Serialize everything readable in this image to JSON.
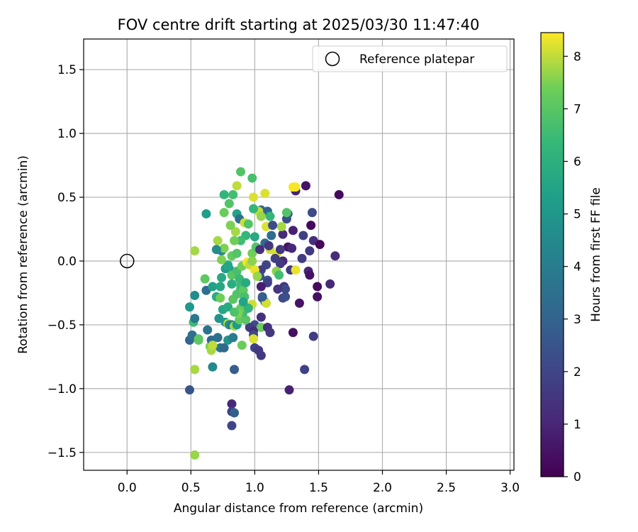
{
  "chart_data": {
    "type": "scatter",
    "title": "FOV centre drift starting at 2025/03/30 11:47:40",
    "xlabel": "Angular distance from reference (arcmin)",
    "ylabel": "Rotation from reference (arcmin)",
    "xlim": [
      -0.34,
      3.03
    ],
    "ylim": [
      -1.64,
      1.74
    ],
    "xticks": [
      "0.0",
      "0.5",
      "1.0",
      "1.5",
      "2.0",
      "2.5",
      "3.0"
    ],
    "xtick_values": [
      0,
      0.5,
      1.0,
      1.5,
      2.0,
      2.5,
      3.0
    ],
    "yticks": [
      "−1.5",
      "−1.0",
      "−0.5",
      "0.0",
      "0.5",
      "1.0",
      "1.5"
    ],
    "ytick_values": [
      -1.5,
      -1.0,
      -0.5,
      0.0,
      0.5,
      1.0,
      1.5
    ],
    "grid": true,
    "legend": {
      "label": "Reference platepar",
      "placement": "upper-right"
    },
    "reference_point": {
      "x": 0.0,
      "y": 0.0
    },
    "colorbar": {
      "label": "Hours from first FF file",
      "colormap": "viridis",
      "range": [
        0,
        8.45
      ],
      "ticks": [
        "0",
        "1",
        "2",
        "3",
        "4",
        "5",
        "6",
        "7",
        "8"
      ],
      "tick_values": [
        0,
        1,
        2,
        3,
        4,
        5,
        6,
        7,
        8
      ]
    },
    "points": [
      [
        1.66,
        0.52,
        0.2
      ],
      [
        1.4,
        0.59,
        0.5
      ],
      [
        1.32,
        0.55,
        0.9
      ],
      [
        1.3,
        0.58,
        8.4
      ],
      [
        1.45,
        0.38,
        2.2
      ],
      [
        1.44,
        0.28,
        0.2
      ],
      [
        1.38,
        0.2,
        1.8
      ],
      [
        1.46,
        0.16,
        1.3
      ],
      [
        1.51,
        0.13,
        0.2
      ],
      [
        1.3,
        0.24,
        0.9
      ],
      [
        1.26,
        0.11,
        0.5
      ],
      [
        1.29,
        0.1,
        1.1
      ],
      [
        1.22,
        0.0,
        1.0
      ],
      [
        1.25,
        0.33,
        2.3
      ],
      [
        1.26,
        0.37,
        2.5
      ],
      [
        1.63,
        0.04,
        1.2
      ],
      [
        1.43,
        0.08,
        1.6
      ],
      [
        1.37,
        0.02,
        1.7
      ],
      [
        1.42,
        -0.08,
        1.1
      ],
      [
        1.43,
        -0.11,
        0.5
      ],
      [
        1.49,
        -0.2,
        0.3
      ],
      [
        1.59,
        -0.18,
        1.1
      ],
      [
        1.49,
        -0.28,
        0.4
      ],
      [
        1.35,
        -0.33,
        0.5
      ],
      [
        1.28,
        -0.07,
        1.7
      ],
      [
        1.2,
        -0.02,
        1.6
      ],
      [
        1.23,
        -0.2,
        1.5
      ],
      [
        1.22,
        -0.29,
        2.1
      ],
      [
        1.24,
        -0.28,
        2.3
      ],
      [
        1.3,
        -0.56,
        0.4
      ],
      [
        1.46,
        -0.59,
        1.7
      ],
      [
        1.39,
        -0.85,
        1.9
      ],
      [
        1.27,
        -1.01,
        0.9
      ],
      [
        1.32,
        0.58,
        8.4
      ],
      [
        1.25,
        0.38,
        6.9
      ],
      [
        1.22,
        0.21,
        1.2
      ],
      [
        1.21,
        0.27,
        7.8
      ],
      [
        1.09,
        0.27,
        8.2
      ],
      [
        1.05,
        0.4,
        3.2
      ],
      [
        1.1,
        0.39,
        3.0
      ],
      [
        1.08,
        0.53,
        8.2
      ],
      [
        1.03,
        0.39,
        8.0
      ],
      [
        0.99,
        0.41,
        6.3
      ],
      [
        0.99,
        0.5,
        8.2
      ],
      [
        0.98,
        0.65,
        6.7
      ],
      [
        0.89,
        0.7,
        6.9
      ],
      [
        0.86,
        0.59,
        8.0
      ],
      [
        0.83,
        0.52,
        6.6
      ],
      [
        0.76,
        0.52,
        6.2
      ],
      [
        0.8,
        0.45,
        6.9
      ],
      [
        0.76,
        0.38,
        7.3
      ],
      [
        0.86,
        0.37,
        5.5
      ],
      [
        0.88,
        0.33,
        3.5
      ],
      [
        0.92,
        0.3,
        8.1
      ],
      [
        0.85,
        0.23,
        7.8
      ],
      [
        0.81,
        0.28,
        7.5
      ],
      [
        0.93,
        0.2,
        6.3
      ],
      [
        0.89,
        0.16,
        6.5
      ],
      [
        0.84,
        0.16,
        7.4
      ],
      [
        0.71,
        0.16,
        7.8
      ],
      [
        0.62,
        0.37,
        5.3
      ],
      [
        0.74,
        0.08,
        4.3
      ],
      [
        0.76,
        0.1,
        7.5
      ],
      [
        0.82,
        0.04,
        7.2
      ],
      [
        0.86,
        0.06,
        6.9
      ],
      [
        0.98,
        0.06,
        7.4
      ],
      [
        1.01,
        0.11,
        6.9
      ],
      [
        1.08,
        0.14,
        3.2
      ],
      [
        1.12,
        0.09,
        8.1
      ],
      [
        1.11,
        0.12,
        1.5
      ],
      [
        1.17,
        0.05,
        8.2
      ],
      [
        1.04,
        0.09,
        1.3
      ],
      [
        1.09,
        -0.03,
        2.0
      ],
      [
        1.05,
        -0.07,
        1.8
      ],
      [
        1.04,
        -0.12,
        2.4
      ],
      [
        1.1,
        -0.15,
        2.6
      ],
      [
        1.1,
        -0.17,
        1.9
      ],
      [
        1.05,
        -0.2,
        0.8
      ],
      [
        1.06,
        -0.29,
        1.7
      ],
      [
        1.08,
        -0.32,
        3.6
      ],
      [
        1.09,
        -0.33,
        8.1
      ],
      [
        1.05,
        -0.44,
        1.3
      ],
      [
        0.98,
        -0.34,
        8.1
      ],
      [
        1.0,
        -0.5,
        2.2
      ],
      [
        1.05,
        -0.52,
        7.3
      ],
      [
        1.1,
        -0.52,
        1.3
      ],
      [
        1.12,
        -0.56,
        1.5
      ],
      [
        0.96,
        -0.52,
        1.8
      ],
      [
        0.99,
        -0.55,
        1.2
      ],
      [
        0.99,
        -0.58,
        2.2
      ],
      [
        0.99,
        -0.61,
        8.2
      ],
      [
        1.0,
        -0.68,
        1.9
      ],
      [
        1.03,
        -0.7,
        1.6
      ],
      [
        1.05,
        -0.74,
        1.6
      ],
      [
        0.9,
        -0.66,
        7.3
      ],
      [
        0.84,
        -0.85,
        2.8
      ],
      [
        0.82,
        -1.12,
        1.1
      ],
      [
        0.82,
        -1.18,
        1.8
      ],
      [
        0.84,
        -1.19,
        2.9
      ],
      [
        0.82,
        -1.29,
        2.0
      ],
      [
        0.53,
        -1.52,
        7.7
      ],
      [
        0.49,
        -1.01,
        2.5
      ],
      [
        0.53,
        -0.85,
        7.8
      ],
      [
        0.49,
        -0.62,
        3.1
      ],
      [
        0.51,
        -0.58,
        3.5
      ],
      [
        0.56,
        -0.61,
        7.0
      ],
      [
        0.65,
        -0.67,
        7.5
      ],
      [
        0.66,
        -0.7,
        7.8
      ],
      [
        0.67,
        -0.83,
        4.5
      ],
      [
        0.73,
        -0.68,
        3.8
      ],
      [
        0.76,
        -0.68,
        3.2
      ],
      [
        0.66,
        -0.62,
        3.3
      ],
      [
        0.71,
        -0.6,
        3.5
      ],
      [
        0.79,
        -0.62,
        4.9
      ],
      [
        0.83,
        -0.6,
        4.0
      ],
      [
        0.63,
        -0.54,
        3.6
      ],
      [
        0.52,
        -0.48,
        6.5
      ],
      [
        0.53,
        -0.45,
        3.8
      ],
      [
        0.49,
        -0.36,
        5.1
      ],
      [
        0.53,
        -0.27,
        4.6
      ],
      [
        0.62,
        -0.23,
        3.4
      ],
      [
        0.61,
        -0.14,
        7.1
      ],
      [
        0.67,
        -0.2,
        5.4
      ],
      [
        0.7,
        -0.28,
        5.8
      ],
      [
        0.73,
        -0.29,
        7.4
      ],
      [
        0.75,
        -0.38,
        5.6
      ],
      [
        0.72,
        -0.45,
        4.9
      ],
      [
        0.77,
        -0.48,
        5.1
      ],
      [
        0.79,
        -0.49,
        7.9
      ],
      [
        0.8,
        -0.5,
        4.6
      ],
      [
        0.82,
        -0.5,
        4.2
      ],
      [
        0.84,
        -0.51,
        7.8
      ],
      [
        0.86,
        -0.5,
        5.2
      ],
      [
        0.88,
        -0.46,
        7.2
      ],
      [
        0.88,
        -0.4,
        6.8
      ],
      [
        0.83,
        -0.3,
        7.0
      ],
      [
        0.86,
        -0.26,
        6.9
      ],
      [
        0.89,
        -0.22,
        6.7
      ],
      [
        0.89,
        -0.19,
        6.5
      ],
      [
        0.91,
        -0.23,
        7.1
      ],
      [
        0.92,
        -0.28,
        6.7
      ],
      [
        0.93,
        -0.46,
        7.0
      ],
      [
        0.91,
        -0.4,
        6.6
      ],
      [
        0.89,
        -0.37,
        7.2
      ],
      [
        0.87,
        -0.41,
        7.5
      ],
      [
        0.79,
        -0.36,
        5.8
      ],
      [
        0.73,
        -0.2,
        5.6
      ],
      [
        0.74,
        -0.13,
        5.7
      ],
      [
        0.77,
        -0.06,
        5.3
      ],
      [
        0.79,
        -0.03,
        6.3
      ],
      [
        0.8,
        -0.06,
        4.9
      ],
      [
        0.82,
        -0.11,
        7.0
      ],
      [
        0.86,
        -0.08,
        6.7
      ],
      [
        0.88,
        -0.14,
        6.4
      ],
      [
        0.93,
        -0.17,
        5.8
      ],
      [
        0.9,
        -0.04,
        7.4
      ],
      [
        0.94,
        -0.01,
        8.4
      ],
      [
        0.96,
        -0.03,
        8.0
      ],
      [
        1.0,
        -0.07,
        8.3
      ],
      [
        1.02,
        -0.12,
        7.7
      ],
      [
        0.98,
        0.0,
        7.6
      ],
      [
        0.74,
        0.01,
        7.5
      ],
      [
        0.7,
        0.09,
        4.6
      ],
      [
        0.53,
        0.08,
        7.8
      ],
      [
        0.67,
        -0.66,
        8.0
      ],
      [
        0.56,
        -0.62,
        7.1
      ],
      [
        0.84,
        -0.4,
        6.8
      ],
      [
        0.95,
        -0.37,
        6.2
      ],
      [
        0.91,
        -0.32,
        5.5
      ],
      [
        1.0,
        0.19,
        5.7
      ],
      [
        1.13,
        0.2,
        3.4
      ],
      [
        1.17,
        -0.08,
        7.6
      ],
      [
        1.19,
        -0.11,
        6.6
      ],
      [
        1.24,
        -0.22,
        2.1
      ],
      [
        1.12,
        0.35,
        6.3
      ],
      [
        1.05,
        0.35,
        7.7
      ],
      [
        0.95,
        0.29,
        6.9
      ],
      [
        1.16,
        0.02,
        1.8
      ],
      [
        1.32,
        -0.07,
        8.3
      ],
      [
        1.18,
        -0.22,
        1.5
      ],
      [
        1.2,
        0.09,
        1.6
      ],
      [
        1.14,
        0.28,
        2.2
      ],
      [
        0.79,
        -0.04,
        5.6
      ],
      [
        0.82,
        -0.18,
        5.9
      ],
      [
        1.06,
        -0.28,
        2.8
      ]
    ]
  }
}
